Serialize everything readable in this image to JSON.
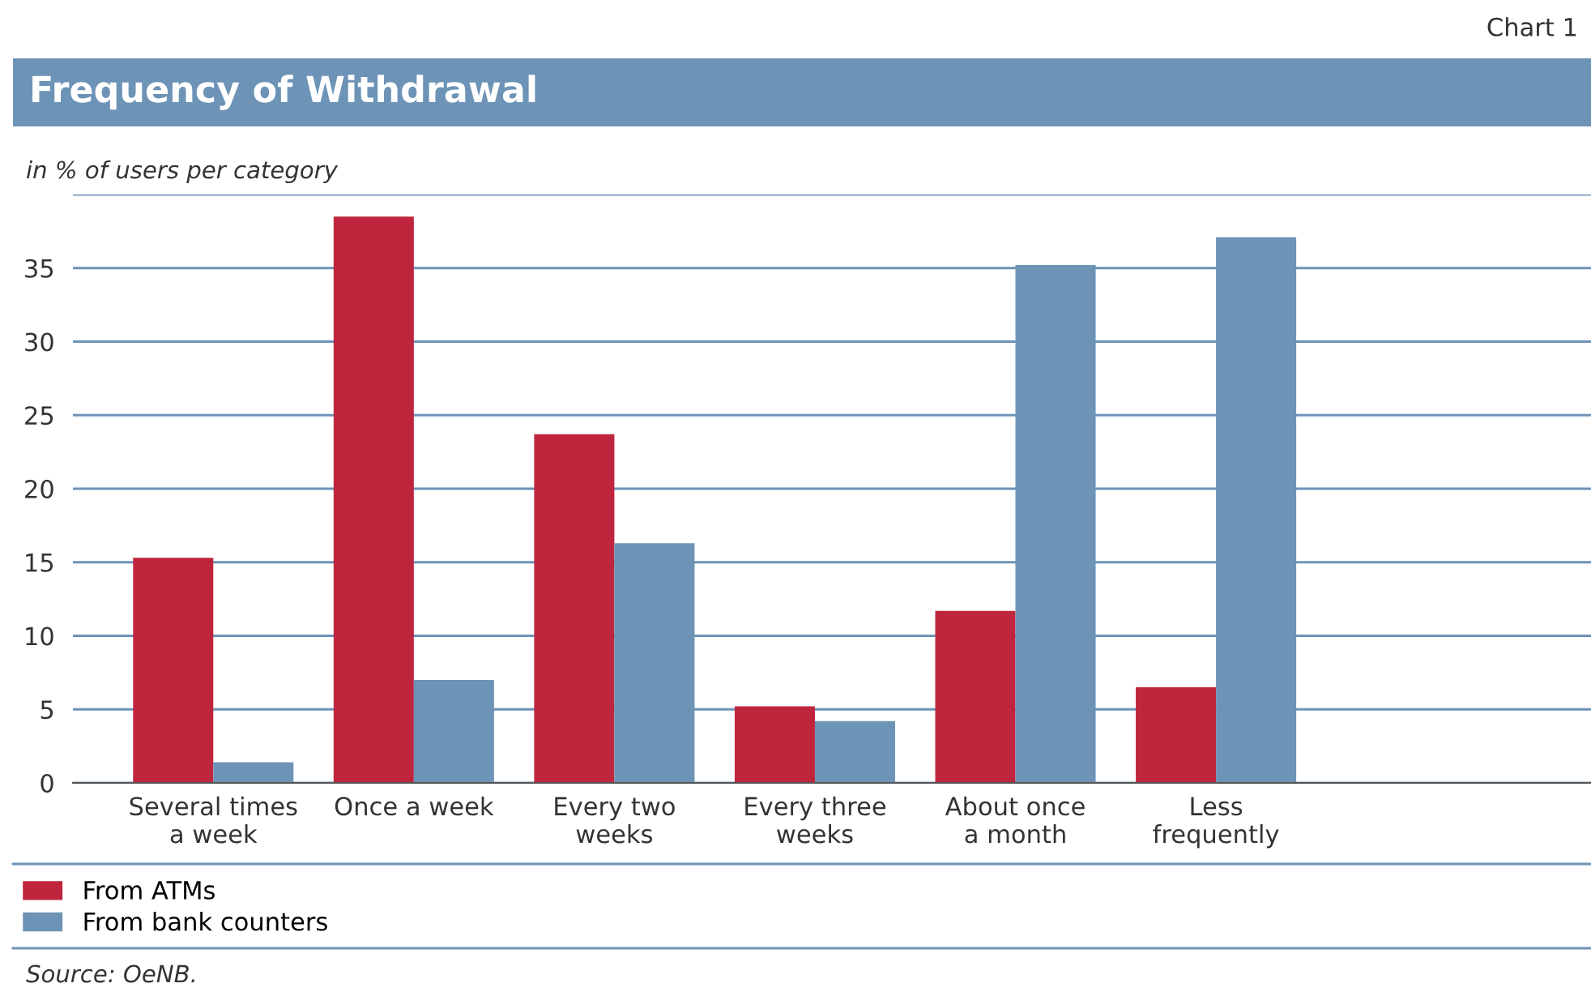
{
  "chart_data": {
    "type": "bar",
    "title": "Frequency of Withdrawal",
    "subtitle": "in % of users per category",
    "categories": [
      "Several times\na week",
      "Once a week",
      "Every two\nweeks",
      "Every three\nweeks",
      "About once\na month",
      "Less\nfrequently"
    ],
    "series": [
      {
        "name": "From ATMs",
        "color": "#c0253e",
        "values": [
          15.3,
          38.5,
          23.7,
          5.2,
          11.7,
          6.5
        ]
      },
      {
        "name": "From bank counters",
        "color": "#6d93b7",
        "values": [
          1.4,
          7.0,
          16.3,
          4.2,
          35.2,
          37.1
        ]
      }
    ],
    "ylim": [
      0,
      40
    ],
    "yticks": [
      0,
      5,
      10,
      15,
      20,
      25,
      30,
      35,
      {
        "value": 40,
        "label": null
      }
    ],
    "grid": "y",
    "legend": "bottom",
    "annotations": [
      "Chart 1",
      "Source: OeNB."
    ]
  }
}
